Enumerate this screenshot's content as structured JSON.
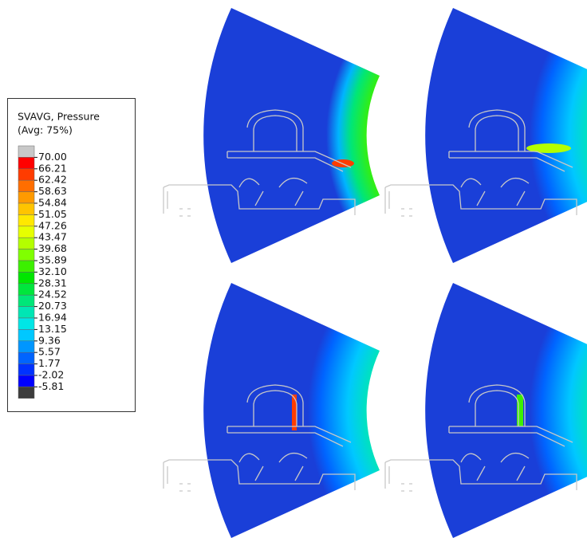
{
  "legend": {
    "title": "SVAVG, Pressure",
    "subtitle": "(Avg: 75%)",
    "labels": [
      "70.00",
      "66.21",
      "62.42",
      "58.63",
      "54.84",
      "51.05",
      "47.26",
      "43.47",
      "39.68",
      "35.89",
      "32.10",
      "28.31",
      "24.52",
      "20.73",
      "16.94",
      "13.15",
      "9.36",
      "5.57",
      "1.77",
      "-2.02",
      "-5.81"
    ],
    "colors": [
      "#c8c8c8",
      "#ff0000",
      "#ff3c00",
      "#ff6e00",
      "#ff9a00",
      "#ffc400",
      "#ffe800",
      "#e6ff00",
      "#b4ff00",
      "#80ff00",
      "#3cf000",
      "#00e600",
      "#00e63c",
      "#00e678",
      "#00e6b4",
      "#00e6e6",
      "#00c8ff",
      "#0096ff",
      "#0064ff",
      "#0032ff",
      "#0000ff",
      "#3c3c3c"
    ]
  }
}
